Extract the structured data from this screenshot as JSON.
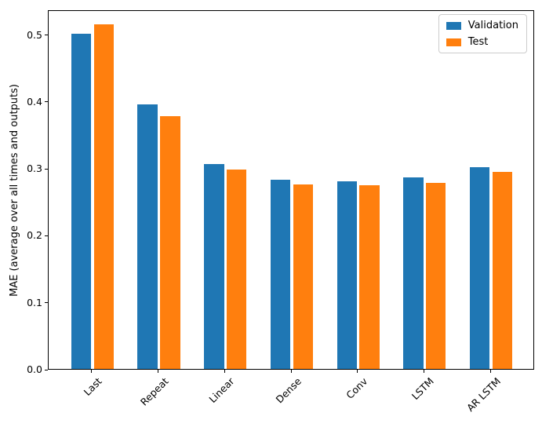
{
  "figure": {
    "background": "#ffffff",
    "spine_color": "#000000"
  },
  "chart_data": {
    "type": "bar",
    "title": "",
    "xlabel": "",
    "ylabel": "MAE (average over all times and outputs)",
    "categories": [
      "Last",
      "Repeat",
      "Linear",
      "Dense",
      "Conv",
      "LSTM",
      "AR LSTM"
    ],
    "series": [
      {
        "name": "Validation",
        "color": "#1f77b4",
        "values": [
          0.501,
          0.395,
          0.306,
          0.283,
          0.28,
          0.286,
          0.301
        ]
      },
      {
        "name": "Test",
        "color": "#ff7f0e",
        "values": [
          0.515,
          0.377,
          0.298,
          0.276,
          0.274,
          0.278,
          0.294
        ]
      }
    ],
    "ylim": [
      0,
      0.537
    ],
    "xlim": [
      -0.66,
      6.66
    ],
    "yticks": [
      "0.0",
      "0.1",
      "0.2",
      "0.3",
      "0.4",
      "0.5"
    ],
    "ytick_values": [
      0.0,
      0.1,
      0.2,
      0.3,
      0.4,
      0.5
    ],
    "xtick_rotation": 45,
    "bar_width": 0.3,
    "bar_offset": 0.17,
    "grid": false,
    "legend_position": "upper right"
  }
}
